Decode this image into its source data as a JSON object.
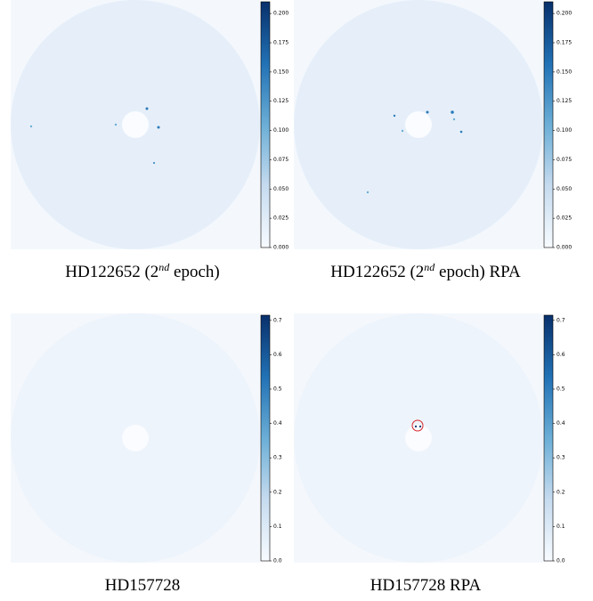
{
  "chart_data": [
    {
      "type": "image",
      "caption": {
        "text": "HD122652 (2",
        "superscript": "nd",
        "suffix": " epoch)"
      },
      "colormap": "Blues",
      "clim": [
        0,
        0.21
      ],
      "colorbar_ticks": [
        {
          "value": 0,
          "label": "0.000"
        },
        {
          "value": 0.025,
          "label": "0.025"
        },
        {
          "value": 0.05,
          "label": "0.050"
        },
        {
          "value": 0.075,
          "label": "0.075"
        },
        {
          "value": 0.1,
          "label": "0.100"
        },
        {
          "value": 0.125,
          "label": "0.125"
        },
        {
          "value": 0.15,
          "label": "0.150"
        },
        {
          "value": 0.175,
          "label": "0.175"
        },
        {
          "value": 0.2,
          "label": "0.200"
        }
      ]
    },
    {
      "type": "image",
      "caption": {
        "text": "HD122652 (2",
        "superscript": "nd",
        "suffix": " epoch) RPA"
      },
      "colormap": "Blues",
      "clim": [
        0,
        0.21
      ],
      "colorbar_ticks": [
        {
          "value": 0,
          "label": "0.000"
        },
        {
          "value": 0.025,
          "label": "0.025"
        },
        {
          "value": 0.05,
          "label": "0.050"
        },
        {
          "value": 0.075,
          "label": "0.075"
        },
        {
          "value": 0.1,
          "label": "0.100"
        },
        {
          "value": 0.125,
          "label": "0.125"
        },
        {
          "value": 0.15,
          "label": "0.150"
        },
        {
          "value": 0.175,
          "label": "0.175"
        },
        {
          "value": 0.2,
          "label": "0.200"
        }
      ]
    },
    {
      "type": "image",
      "caption": {
        "text": "HD157728"
      },
      "colormap": "Blues",
      "clim": [
        0,
        0.715
      ],
      "colorbar_ticks": [
        {
          "value": 0,
          "label": "0.0"
        },
        0.1,
        0.2,
        0.3,
        0.4,
        0.5,
        0.6,
        0.7
      ]
    },
    {
      "type": "image",
      "caption": {
        "text": "HD157728 RPA"
      },
      "colormap": "Blues",
      "clim": [
        0,
        0.715
      ],
      "colorbar_ticks": [
        {
          "value": 0,
          "label": "0.0"
        },
        0.1,
        0.2,
        0.3,
        0.4,
        0.5,
        0.6,
        0.7
      ]
    }
  ]
}
